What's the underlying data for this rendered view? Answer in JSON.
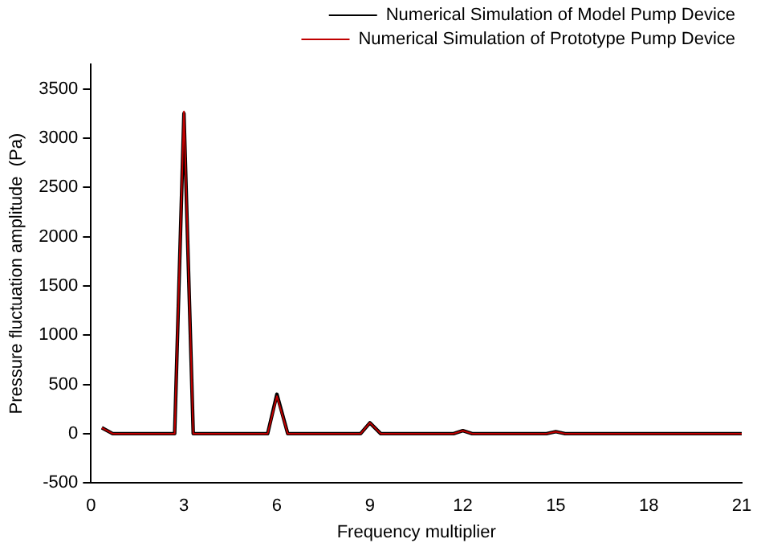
{
  "chart_data": {
    "type": "line",
    "xlabel": "Frequency multiplier",
    "ylabel": "Pressure fluctuation amplitude  (Pa)",
    "xlim": [
      0,
      21
    ],
    "xticks": [
      0,
      3,
      6,
      9,
      12,
      15,
      18,
      21
    ],
    "ylim": [
      -500,
      3750
    ],
    "yticks": [
      -500,
      0,
      500,
      1000,
      1500,
      2000,
      2500,
      3000,
      3500
    ],
    "grid": false,
    "legend": "top right",
    "marker": "none",
    "line_style": "solid",
    "series": [
      {
        "name": "Numerical Simulation of Model Pump Device",
        "color": "#000000",
        "x": [
          0.35,
          0.7,
          2.7,
          3,
          3.3,
          5.7,
          6,
          6.35,
          8.7,
          9,
          9.35,
          11.7,
          12,
          12.3,
          14.7,
          15,
          15.3,
          21
        ],
        "values": [
          60,
          0,
          0,
          3250,
          0,
          0,
          400,
          0,
          0,
          110,
          0,
          0,
          30,
          0,
          0,
          20,
          0,
          0
        ]
      },
      {
        "name": "Numerical Simulation of Prototype Pump Device",
        "color": "#c00000",
        "x": [
          0.35,
          0.7,
          2.7,
          3,
          3.3,
          5.7,
          6,
          6.35,
          8.7,
          9,
          9.35,
          11.7,
          12,
          12.3,
          14.7,
          15,
          15.3,
          21
        ],
        "values": [
          60,
          0,
          0,
          3270,
          0,
          0,
          380,
          0,
          0,
          110,
          0,
          0,
          30,
          0,
          0,
          20,
          0,
          0
        ]
      }
    ]
  }
}
